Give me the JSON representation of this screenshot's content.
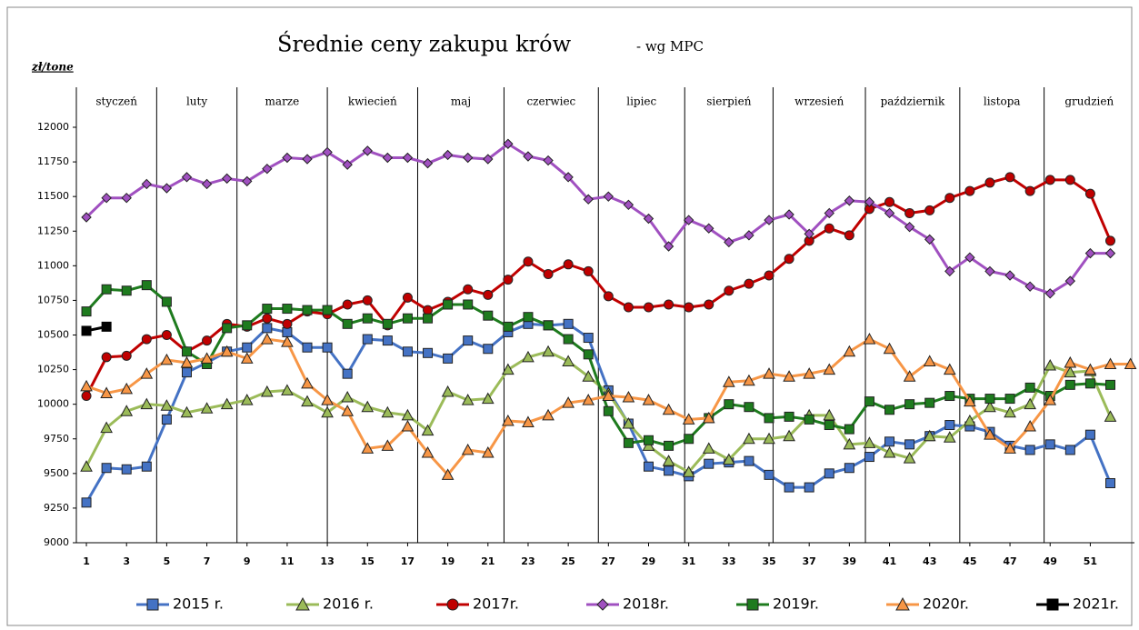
{
  "chart_data": {
    "type": "line",
    "title": "Średnie ceny zakupu krów",
    "subtitle": "- wg MPC",
    "y_axis_label": "zł/tone",
    "months": [
      "styczeń",
      "luty",
      "marze",
      "kwiecień",
      "maj",
      "czerwiec",
      "lipiec",
      "sierpień",
      "wrzesień",
      "październik",
      "listopa",
      "grudzień"
    ],
    "month_dividers": [
      4.5,
      8.5,
      13,
      17.5,
      21.8,
      26.5,
      30.8,
      35.2,
      39.8,
      44.5,
      48.7
    ],
    "x": [
      1,
      2,
      3,
      4,
      5,
      6,
      7,
      8,
      9,
      10,
      11,
      12,
      13,
      14,
      15,
      16,
      17,
      18,
      19,
      20,
      21,
      22,
      23,
      24,
      25,
      26,
      27,
      28,
      29,
      30,
      31,
      32,
      33,
      34,
      35,
      36,
      37,
      38,
      39,
      40,
      41,
      42,
      43,
      44,
      45,
      46,
      47,
      48,
      49,
      50,
      51,
      52,
      53
    ],
    "xlim": [
      0.5,
      53.2
    ],
    "xticks": [
      1,
      3,
      5,
      7,
      9,
      11,
      13,
      15,
      17,
      19,
      21,
      23,
      25,
      27,
      29,
      31,
      33,
      35,
      37,
      39,
      41,
      43,
      45,
      47,
      49,
      51
    ],
    "ylim": [
      9000,
      12000
    ],
    "yticks": [
      9000,
      9250,
      9500,
      9750,
      10000,
      10250,
      10500,
      10750,
      11000,
      11250,
      11500,
      11750,
      12000
    ],
    "grid": false,
    "series": [
      {
        "name": "2015 r.",
        "color": "#4472c4",
        "marker": "square",
        "values": [
          9290,
          9540,
          9530,
          9550,
          9890,
          10230,
          10300,
          10380,
          10410,
          10550,
          10520,
          10410,
          10410,
          10220,
          10470,
          10460,
          10380,
          10370,
          10330,
          10460,
          10400,
          10520,
          10580,
          10570,
          10580,
          10480,
          10100,
          9860,
          9550,
          9520,
          9480,
          9570,
          9580,
          9590,
          9490,
          9400,
          9400,
          9500,
          9540,
          9620,
          9730,
          9710,
          9770,
          9850,
          9840,
          9800,
          9700,
          9670,
          9710,
          9670,
          9780,
          9430,
          null
        ]
      },
      {
        "name": "2016 r.",
        "color": "#9bbb59",
        "marker": "triangle",
        "values": [
          9550,
          9830,
          9950,
          10000,
          9990,
          9940,
          9970,
          10000,
          10030,
          10090,
          10100,
          10020,
          9940,
          10050,
          9980,
          9940,
          9920,
          9810,
          10090,
          10030,
          10040,
          10250,
          10340,
          10380,
          10310,
          10200,
          10080,
          9860,
          9700,
          9590,
          9510,
          9680,
          9600,
          9750,
          9750,
          9770,
          9920,
          9920,
          9710,
          9720,
          9650,
          9610,
          9770,
          9760,
          9880,
          9980,
          9940,
          10000,
          10280,
          10230,
          10240,
          9910,
          null
        ]
      },
      {
        "name": "2017r.",
        "color": "#c00000",
        "marker": "circle",
        "values": [
          10060,
          10340,
          10350,
          10470,
          10500,
          10380,
          10460,
          10580,
          10560,
          10620,
          10580,
          10670,
          10650,
          10720,
          10750,
          10570,
          10770,
          10680,
          10740,
          10830,
          10790,
          10900,
          11030,
          10940,
          11010,
          10960,
          10780,
          10700,
          10700,
          10720,
          10700,
          10720,
          10820,
          10870,
          10930,
          11050,
          11180,
          11270,
          11220,
          11410,
          11460,
          11380,
          11400,
          11490,
          11540,
          11600,
          11640,
          11540,
          11620,
          11620,
          11520,
          11180,
          null
        ]
      },
      {
        "name": "2018r.",
        "color": "#a050c0",
        "marker": "diamond",
        "values": [
          11350,
          11490,
          11490,
          11590,
          11560,
          11640,
          11590,
          11630,
          11610,
          11700,
          11780,
          11770,
          11820,
          11730,
          11830,
          11780,
          11780,
          11740,
          11800,
          11780,
          11770,
          11880,
          11790,
          11760,
          11640,
          11480,
          11500,
          11440,
          11340,
          11140,
          11330,
          11270,
          11170,
          11220,
          11330,
          11370,
          11230,
          11380,
          11470,
          11460,
          11380,
          11280,
          11190,
          10960,
          11060,
          10960,
          10930,
          10850,
          10800,
          10890,
          11090,
          11090,
          null
        ]
      },
      {
        "name": "2019r.",
        "color": "#1e7b1e",
        "marker": "square",
        "values": [
          10670,
          10830,
          10820,
          10860,
          10740,
          10380,
          10290,
          10550,
          10570,
          10690,
          10690,
          10680,
          10680,
          10580,
          10620,
          10580,
          10620,
          10620,
          10720,
          10720,
          10640,
          10560,
          10630,
          10570,
          10470,
          10360,
          9950,
          9720,
          9740,
          9700,
          9750,
          9900,
          10000,
          9980,
          9900,
          9910,
          9890,
          9850,
          9820,
          10020,
          9960,
          10000,
          10010,
          10060,
          10040,
          10040,
          10040,
          10120,
          10060,
          10140,
          10150,
          10140,
          null
        ]
      },
      {
        "name": "2020r.",
        "color": "#f79646",
        "marker": "triangle",
        "values": [
          10130,
          10080,
          10110,
          10220,
          10320,
          10300,
          10330,
          10380,
          10330,
          10470,
          10450,
          10150,
          10030,
          9950,
          9680,
          9700,
          9840,
          9650,
          9490,
          9670,
          9650,
          9880,
          9870,
          9920,
          10010,
          10030,
          10060,
          10050,
          10030,
          9960,
          9890,
          9900,
          10160,
          10170,
          10220,
          10200,
          10220,
          10250,
          10380,
          10470,
          10400,
          10200,
          10310,
          10250,
          10020,
          9780,
          9680,
          9840,
          10030,
          10300,
          10250,
          10290,
          10290
        ]
      },
      {
        "name": "2021r.",
        "color": "#000000",
        "marker": "square",
        "values": [
          10530,
          10560,
          null,
          null,
          null,
          null,
          null,
          null,
          null,
          null,
          null,
          null,
          null,
          null,
          null,
          null,
          null,
          null,
          null,
          null,
          null,
          null,
          null,
          null,
          null,
          null,
          null,
          null,
          null,
          null,
          null,
          null,
          null,
          null,
          null,
          null,
          null,
          null,
          null,
          null,
          null,
          null,
          null,
          null,
          null,
          null,
          null,
          null,
          null,
          null,
          null,
          null,
          null
        ]
      }
    ]
  }
}
